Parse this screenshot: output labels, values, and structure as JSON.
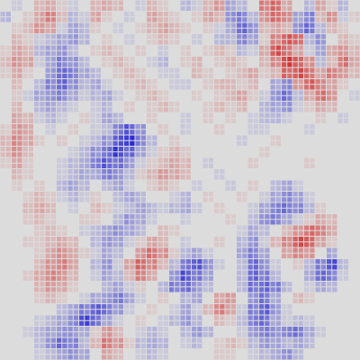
{
  "chart_data": {
    "type": "heatmap",
    "title": "",
    "xlabel": "",
    "ylabel": "",
    "value_range": [
      -1,
      1
    ],
    "rows": 32,
    "cols": 32,
    "colormap": {
      "negative": "#2b2bd6",
      "zero": "#dcdcdc",
      "positive": "#d62b2b"
    },
    "cell_gap_style": "light-grid",
    "values": [
      [
        0.0,
        -0.1,
        0.0,
        0.2,
        0.3,
        0.1,
        -0.1,
        0.0,
        0.2,
        0.3,
        0.2,
        0.0,
        -0.1,
        0.2,
        0.1,
        0.0,
        -0.2,
        -0.1,
        0.2,
        0.4,
        -0.3,
        -0.2,
        0.0,
        0.5,
        0.7,
        0.3,
        0.0,
        -0.2,
        0.3,
        0.1,
        -0.2,
        0.0
      ],
      [
        -0.2,
        0.0,
        0.1,
        0.3,
        0.5,
        0.2,
        -0.2,
        -0.1,
        0.3,
        0.1,
        0.0,
        -0.1,
        0.0,
        0.3,
        0.2,
        0.1,
        0.0,
        0.1,
        0.3,
        0.2,
        -0.4,
        -0.5,
        -0.2,
        0.4,
        0.6,
        0.5,
        -0.3,
        -0.5,
        0.2,
        0.4,
        -0.1,
        0.1
      ],
      [
        0.0,
        0.1,
        0.2,
        0.4,
        0.3,
        -0.1,
        -0.3,
        -0.2,
        0.1,
        0.0,
        -0.1,
        0.0,
        0.1,
        0.2,
        0.3,
        0.2,
        0.1,
        0.0,
        0.1,
        -0.1,
        -0.3,
        -0.6,
        -0.4,
        0.2,
        0.3,
        0.2,
        -0.4,
        -0.6,
        -0.2,
        0.2,
        0.1,
        0.0
      ],
      [
        0.0,
        0.2,
        0.1,
        -0.1,
        -0.2,
        -0.3,
        -0.4,
        -0.2,
        0.0,
        0.1,
        0.0,
        -0.1,
        0.0,
        0.1,
        0.2,
        0.1,
        0.0,
        -0.1,
        0.0,
        -0.2,
        -0.2,
        -0.5,
        -0.3,
        0.1,
        0.5,
        0.7,
        0.6,
        -0.2,
        -0.4,
        0.0,
        0.2,
        0.1
      ],
      [
        0.1,
        0.3,
        0.2,
        -0.2,
        -0.3,
        -0.4,
        -0.2,
        0.0,
        0.1,
        0.2,
        0.1,
        0.0,
        0.1,
        0.0,
        -0.1,
        0.0,
        0.1,
        0.0,
        0.1,
        0.2,
        0.1,
        -0.2,
        -0.1,
        0.3,
        0.8,
        0.6,
        0.3,
        -0.1,
        -0.3,
        0.3,
        0.4,
        0.2
      ],
      [
        0.2,
        0.4,
        0.3,
        -0.1,
        -0.3,
        -0.5,
        -0.4,
        -0.2,
        0.0,
        0.1,
        0.2,
        0.1,
        0.0,
        -0.1,
        -0.2,
        0.0,
        0.1,
        0.2,
        0.0,
        0.1,
        0.2,
        0.1,
        0.0,
        0.2,
        0.5,
        0.9,
        0.7,
        0.4,
        -0.2,
        0.2,
        0.6,
        0.3
      ],
      [
        0.1,
        0.3,
        0.1,
        0.0,
        -0.4,
        -0.6,
        -0.5,
        -0.3,
        -0.2,
        0.0,
        0.1,
        0.2,
        0.1,
        0.0,
        -0.1,
        -0.1,
        0.0,
        0.2,
        0.1,
        0.0,
        0.1,
        0.2,
        0.3,
        0.1,
        0.2,
        0.7,
        0.8,
        0.6,
        0.3,
        0.5,
        0.4,
        0.2
      ],
      [
        0.0,
        0.2,
        0.0,
        -0.2,
        -0.5,
        -0.7,
        -0.4,
        -0.2,
        -0.3,
        -0.1,
        0.0,
        0.1,
        0.2,
        0.1,
        0.0,
        -0.1,
        -0.1,
        0.0,
        0.1,
        0.2,
        0.2,
        0.1,
        0.2,
        0.0,
        -0.3,
        -0.5,
        0.4,
        0.7,
        0.5,
        0.3,
        0.1,
        0.0
      ],
      [
        0.0,
        0.1,
        -0.1,
        -0.3,
        -0.4,
        -0.5,
        -0.3,
        -0.1,
        -0.2,
        -0.3,
        -0.1,
        0.0,
        0.1,
        0.2,
        0.1,
        0.0,
        0.0,
        0.1,
        0.0,
        0.1,
        0.2,
        0.3,
        0.1,
        -0.1,
        -0.4,
        -0.6,
        -0.2,
        0.3,
        0.6,
        0.4,
        0.0,
        -0.1
      ],
      [
        0.0,
        0.2,
        0.0,
        -0.2,
        -0.3,
        -0.2,
        -0.1,
        0.0,
        -0.1,
        -0.2,
        0.0,
        0.1,
        0.0,
        0.1,
        0.2,
        0.1,
        0.0,
        0.0,
        0.1,
        0.2,
        0.1,
        0.2,
        0.0,
        -0.2,
        -0.3,
        -0.4,
        -0.1,
        0.1,
        0.3,
        0.2,
        0.0,
        0.0
      ],
      [
        0.0,
        0.3,
        0.2,
        -0.1,
        -0.2,
        -0.1,
        0.0,
        0.1,
        -0.1,
        -0.3,
        -0.2,
        0.0,
        0.0,
        0.1,
        0.0,
        0.0,
        -0.1,
        0.0,
        0.1,
        0.0,
        0.1,
        0.0,
        -0.1,
        -0.2,
        -0.2,
        -0.1,
        0.0,
        0.0,
        0.1,
        0.0,
        -0.1,
        0.0
      ],
      [
        0.1,
        0.4,
        0.3,
        0.0,
        -0.1,
        0.0,
        0.1,
        0.0,
        -0.1,
        -0.2,
        -0.5,
        -0.7,
        -0.4,
        0.0,
        0.1,
        0.0,
        -0.1,
        0.0,
        0.0,
        0.1,
        0.0,
        0.0,
        -0.1,
        -0.1,
        0.0,
        0.0,
        0.0,
        -0.1,
        0.0,
        0.0,
        0.0,
        0.0
      ],
      [
        0.2,
        0.5,
        0.3,
        0.1,
        0.0,
        0.1,
        0.0,
        -0.1,
        -0.2,
        -0.4,
        -0.8,
        -0.9,
        -0.5,
        -0.2,
        0.0,
        0.1,
        0.0,
        0.0,
        0.0,
        0.0,
        0.0,
        -0.1,
        0.0,
        0.0,
        0.1,
        0.0,
        0.0,
        0.0,
        0.0,
        0.0,
        0.0,
        0.0
      ],
      [
        0.2,
        0.4,
        0.2,
        0.0,
        0.0,
        0.0,
        -0.1,
        -0.2,
        -0.4,
        -0.6,
        -0.9,
        -0.7,
        -0.3,
        -0.1,
        0.1,
        0.2,
        0.1,
        0.0,
        0.0,
        0.0,
        0.0,
        0.0,
        0.0,
        0.1,
        0.0,
        0.0,
        0.0,
        0.0,
        0.0,
        0.0,
        0.0,
        0.0
      ],
      [
        0.1,
        0.3,
        0.1,
        0.0,
        0.0,
        -0.1,
        -0.2,
        -0.3,
        -0.5,
        -0.7,
        -0.6,
        -0.4,
        -0.1,
        0.1,
        0.2,
        0.3,
        0.2,
        0.0,
        -0.1,
        0.0,
        0.0,
        0.0,
        0.1,
        0.0,
        0.0,
        0.0,
        0.0,
        0.1,
        0.0,
        0.0,
        0.0,
        0.0
      ],
      [
        0.0,
        0.2,
        0.1,
        0.0,
        0.0,
        -0.1,
        -0.2,
        -0.3,
        -0.3,
        -0.5,
        -0.4,
        -0.2,
        0.1,
        0.2,
        0.4,
        0.3,
        0.2,
        0.0,
        0.0,
        -0.1,
        0.0,
        0.0,
        0.0,
        0.0,
        0.0,
        0.0,
        0.0,
        0.0,
        0.0,
        0.0,
        0.0,
        0.0
      ],
      [
        0.0,
        0.1,
        0.0,
        0.1,
        0.0,
        -0.2,
        -0.3,
        -0.2,
        0.0,
        -0.2,
        -0.3,
        -0.1,
        0.0,
        0.1,
        0.2,
        0.1,
        0.0,
        -0.1,
        0.0,
        0.0,
        -0.1,
        0.0,
        0.1,
        0.0,
        -0.2,
        -0.3,
        -0.1,
        0.0,
        0.0,
        0.0,
        0.0,
        0.0
      ],
      [
        0.0,
        0.0,
        0.1,
        0.2,
        0.1,
        -0.1,
        -0.2,
        -0.1,
        0.1,
        0.0,
        -0.2,
        -0.3,
        -0.2,
        0.0,
        0.0,
        -0.1,
        -0.2,
        0.0,
        0.1,
        0.0,
        0.0,
        0.1,
        0.0,
        -0.1,
        -0.3,
        -0.5,
        -0.3,
        -0.1,
        0.0,
        0.0,
        0.0,
        0.0
      ],
      [
        0.0,
        0.0,
        0.2,
        0.3,
        0.2,
        0.0,
        -0.1,
        0.0,
        0.2,
        0.1,
        -0.1,
        -0.2,
        -0.3,
        -0.2,
        -0.1,
        -0.2,
        -0.3,
        -0.1,
        0.0,
        0.1,
        0.0,
        0.0,
        -0.1,
        -0.3,
        -0.5,
        -0.6,
        -0.5,
        -0.2,
        0.1,
        0.0,
        0.0,
        0.0
      ],
      [
        0.0,
        0.0,
        0.1,
        0.2,
        0.1,
        0.0,
        0.0,
        0.1,
        0.1,
        0.0,
        -0.2,
        -0.4,
        -0.3,
        -0.1,
        0.0,
        0.0,
        -0.1,
        0.0,
        0.0,
        0.0,
        0.1,
        0.0,
        -0.2,
        -0.4,
        -0.5,
        -0.3,
        -0.1,
        0.1,
        0.3,
        0.2,
        0.0,
        0.0
      ],
      [
        0.0,
        0.0,
        0.0,
        0.1,
        0.2,
        0.1,
        0.0,
        -0.1,
        -0.2,
        -0.3,
        -0.4,
        -0.3,
        -0.2,
        0.0,
        0.2,
        0.1,
        0.0,
        0.0,
        0.0,
        0.0,
        0.0,
        -0.1,
        -0.3,
        -0.2,
        0.0,
        0.2,
        0.4,
        0.6,
        0.5,
        0.3,
        0.0,
        0.0
      ],
      [
        0.0,
        0.0,
        0.1,
        0.1,
        0.2,
        0.3,
        0.2,
        0.0,
        -0.2,
        -0.4,
        -0.3,
        -0.1,
        0.1,
        0.3,
        0.2,
        0.0,
        -0.1,
        0.0,
        0.0,
        0.1,
        0.0,
        -0.2,
        -0.4,
        -0.1,
        0.2,
        0.5,
        0.8,
        0.7,
        0.3,
        0.1,
        0.0,
        0.0
      ],
      [
        0.0,
        0.0,
        0.0,
        0.1,
        0.3,
        0.4,
        0.3,
        0.1,
        -0.1,
        -0.3,
        -0.2,
        0.0,
        0.4,
        0.6,
        0.4,
        0.1,
        -0.2,
        -0.3,
        -0.1,
        0.0,
        0.0,
        -0.3,
        -0.5,
        -0.3,
        0.0,
        0.3,
        0.5,
        0.4,
        0.0,
        -0.3,
        0.0,
        0.0
      ],
      [
        0.0,
        0.0,
        0.0,
        0.2,
        0.4,
        0.5,
        0.3,
        0.0,
        -0.2,
        -0.4,
        -0.1,
        0.3,
        0.7,
        0.5,
        0.2,
        -0.2,
        -0.6,
        -0.7,
        -0.4,
        -0.1,
        0.0,
        -0.2,
        -0.6,
        -0.4,
        -0.1,
        0.0,
        0.1,
        -0.2,
        -0.5,
        -0.8,
        -0.2,
        0.0
      ],
      [
        0.0,
        0.0,
        0.1,
        0.3,
        0.5,
        0.4,
        0.2,
        0.0,
        -0.1,
        -0.3,
        -0.2,
        0.2,
        0.5,
        0.3,
        0.0,
        -0.4,
        -0.8,
        -0.6,
        -0.3,
        0.0,
        0.0,
        -0.2,
        -0.7,
        -0.5,
        -0.2,
        0.0,
        0.0,
        -0.3,
        -0.6,
        -0.5,
        -0.1,
        0.0
      ],
      [
        0.0,
        0.0,
        0.0,
        0.2,
        0.4,
        0.3,
        0.1,
        0.0,
        0.0,
        -0.2,
        -0.3,
        -0.1,
        0.1,
        0.0,
        -0.2,
        -0.5,
        -0.6,
        -0.4,
        -0.2,
        0.0,
        0.0,
        -0.2,
        -0.6,
        -0.7,
        -0.5,
        -0.2,
        0.0,
        -0.1,
        -0.3,
        -0.2,
        0.0,
        0.0
      ],
      [
        0.0,
        0.0,
        0.0,
        0.1,
        0.2,
        0.1,
        0.0,
        -0.1,
        -0.3,
        -0.4,
        -0.5,
        -0.3,
        -0.1,
        0.0,
        0.1,
        0.0,
        -0.2,
        -0.3,
        0.0,
        0.3,
        0.4,
        0.0,
        -0.4,
        -0.6,
        -0.3,
        0.0,
        0.2,
        0.1,
        0.0,
        0.0,
        0.0,
        0.0
      ],
      [
        0.0,
        0.0,
        0.0,
        0.0,
        0.0,
        -0.2,
        -0.3,
        -0.5,
        -0.7,
        -0.6,
        -0.4,
        -0.1,
        0.0,
        0.1,
        0.0,
        -0.1,
        -0.3,
        -0.1,
        0.2,
        0.5,
        0.3,
        -0.1,
        -0.5,
        -0.7,
        -0.4,
        -0.1,
        0.0,
        0.0,
        0.0,
        0.0,
        0.0,
        0.0
      ],
      [
        0.0,
        0.0,
        0.0,
        -0.1,
        -0.2,
        -0.3,
        -0.5,
        -0.8,
        -0.6,
        -0.3,
        -0.1,
        0.0,
        0.1,
        0.0,
        -0.1,
        -0.2,
        -0.4,
        -0.2,
        0.0,
        0.2,
        0.1,
        -0.2,
        -0.5,
        -0.6,
        -0.3,
        -0.1,
        -0.2,
        -0.1,
        0.0,
        0.0,
        0.0,
        0.0
      ],
      [
        0.0,
        0.0,
        -0.1,
        -0.2,
        -0.3,
        -0.4,
        -0.4,
        -0.3,
        0.1,
        0.4,
        0.2,
        0.0,
        -0.1,
        -0.2,
        -0.1,
        0.0,
        -0.2,
        -0.4,
        -0.2,
        0.0,
        0.0,
        -0.1,
        -0.4,
        -0.5,
        -0.4,
        -0.5,
        -0.6,
        -0.3,
        -0.1,
        0.0,
        0.0,
        0.0
      ],
      [
        0.0,
        0.0,
        0.0,
        -0.2,
        -0.4,
        -0.6,
        -0.5,
        -0.2,
        0.2,
        0.6,
        0.4,
        0.1,
        -0.2,
        -0.3,
        -0.2,
        0.0,
        -0.1,
        -0.2,
        0.0,
        0.1,
        0.2,
        0.1,
        -0.2,
        -0.4,
        -0.3,
        -0.2,
        -0.3,
        -0.2,
        0.0,
        0.0,
        0.0,
        0.0
      ],
      [
        0.0,
        0.0,
        0.0,
        -0.1,
        -0.2,
        -0.3,
        -0.4,
        -0.3,
        0.0,
        0.3,
        0.2,
        0.0,
        -0.1,
        -0.2,
        -0.1,
        0.0,
        0.0,
        0.0,
        0.0,
        0.1,
        0.1,
        0.0,
        -0.1,
        -0.2,
        -0.3,
        -0.4,
        -0.2,
        0.0,
        0.0,
        0.0,
        0.0,
        0.0
      ]
    ]
  }
}
